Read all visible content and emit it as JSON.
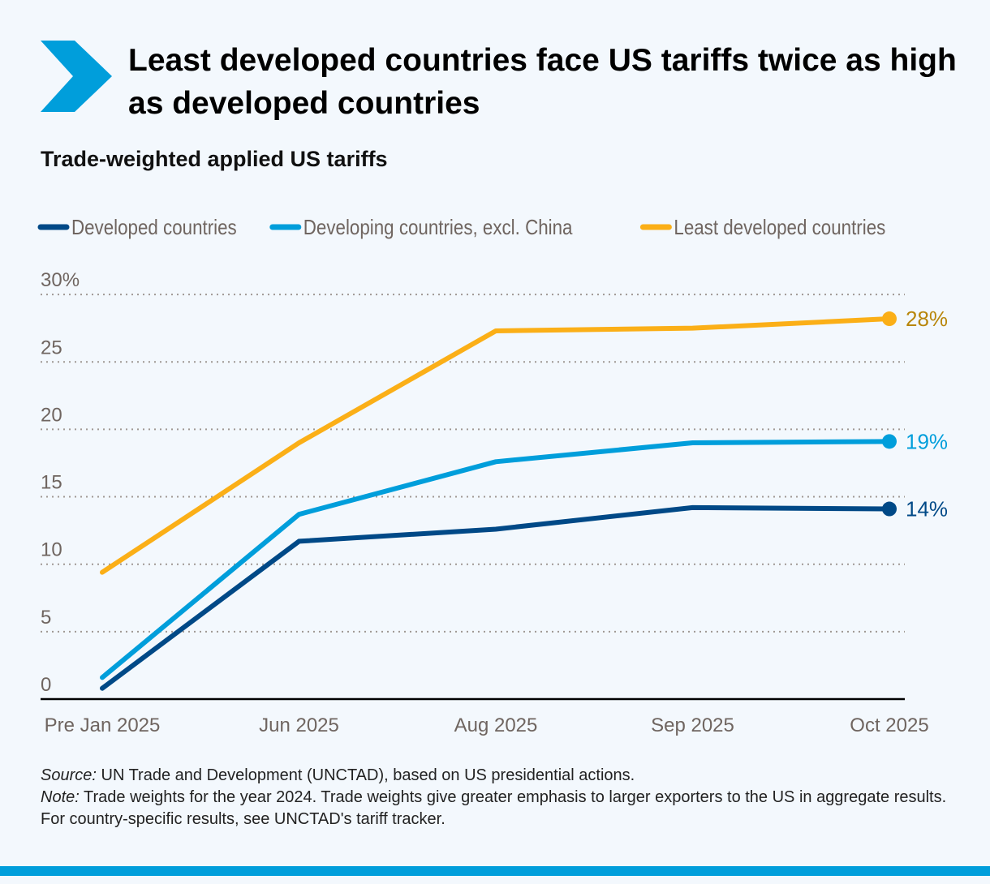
{
  "title": "Least developed countries face US tariffs twice as high as developed countries",
  "subtitle": "Trade-weighted applied US tariffs",
  "notes": {
    "source_label": "Source:",
    "source_text": " UN Trade and Development (UNCTAD), based on US presidential actions.",
    "note_label": "Note:",
    "note_text": " Trade weights for the year 2024. Trade weights give greater emphasis to larger exporters to the US in aggregate results. For country-specific results, see UNCTAD's tariff tracker."
  },
  "logo_color": "#009edb",
  "chart_data": {
    "type": "line",
    "categories": [
      "Pre Jan 2025",
      "Jun 2025",
      "Aug 2025",
      "Sep 2025",
      "Oct 2025"
    ],
    "ylim": [
      0,
      30
    ],
    "yticks": [
      0,
      5,
      10,
      15,
      20,
      25,
      30
    ],
    "ytick_labels": [
      "0",
      "5",
      "10",
      "15",
      "20",
      "25",
      "30%"
    ],
    "grid": true,
    "legend_placement": "top",
    "series": [
      {
        "name": "Developed countries",
        "color": "#004987",
        "values": [
          0.8,
          11.7,
          12.6,
          14.2,
          14.1
        ],
        "end_label": "14%"
      },
      {
        "name": "Developing countries, excl. China",
        "color": "#009edb",
        "values": [
          1.6,
          13.7,
          17.6,
          19.0,
          19.1
        ],
        "end_label": "19%"
      },
      {
        "name": "Least developed countries",
        "color": "#fbaf17",
        "values": [
          9.4,
          19.0,
          27.3,
          27.5,
          28.2
        ],
        "end_label": "28%",
        "end_label_color": "#b8860b"
      }
    ]
  }
}
